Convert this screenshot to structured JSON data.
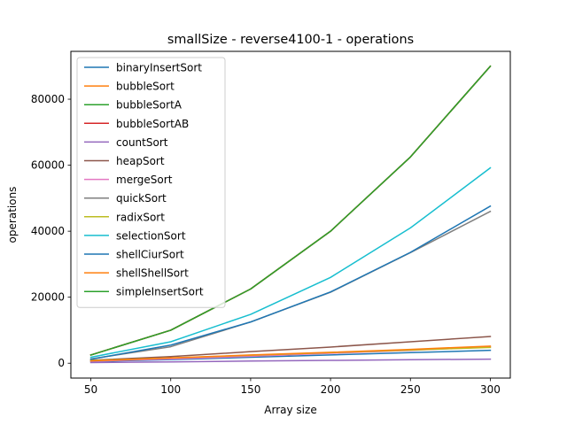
{
  "chart_data": {
    "type": "line",
    "title": "smallSize - reverse4100-1 - operations",
    "xlabel": "Array size",
    "ylabel": "operations",
    "x": [
      50,
      100,
      150,
      200,
      250,
      300
    ],
    "xlim": [
      37.5,
      312.5
    ],
    "ylim": [
      -4500,
      94500
    ],
    "xticks": [
      50,
      100,
      150,
      200,
      250,
      300
    ],
    "yticks": [
      0,
      20000,
      40000,
      60000,
      80000
    ],
    "grid": false,
    "legend_position": "upper-left",
    "series": [
      {
        "name": "binaryInsertSort",
        "color": "#1f77b4",
        "values": [
          500,
          1100,
          1800,
          2500,
          3200,
          3900
        ]
      },
      {
        "name": "bubbleSort",
        "color": "#ff7f0e",
        "values": [
          2500,
          10000,
          22500,
          40000,
          62500,
          90000
        ]
      },
      {
        "name": "bubbleSortA",
        "color": "#2ca02c",
        "values": [
          2500,
          10000,
          22500,
          40000,
          62500,
          90000
        ]
      },
      {
        "name": "bubbleSortAB",
        "color": "#d62728",
        "values": [
          2500,
          10000,
          22500,
          40000,
          62500,
          90000
        ]
      },
      {
        "name": "countSort",
        "color": "#9467bd",
        "values": [
          200,
          400,
          650,
          850,
          1050,
          1250
        ]
      },
      {
        "name": "heapSort",
        "color": "#8c564b",
        "values": [
          900,
          2000,
          3500,
          4900,
          6500,
          8100
        ]
      },
      {
        "name": "mergeSort",
        "color": "#e377c2",
        "values": [
          600,
          1300,
          2100,
          3000,
          3900,
          4900
        ]
      },
      {
        "name": "quickSort",
        "color": "#7f7f7f",
        "values": [
          1300,
          5000,
          12500,
          21500,
          33500,
          46000
        ]
      },
      {
        "name": "radixSort",
        "color": "#bcbd22",
        "values": [
          800,
          1600,
          2400,
          3200,
          4000,
          4800
        ]
      },
      {
        "name": "selectionSort",
        "color": "#17becf",
        "values": [
          1800,
          6500,
          14800,
          26000,
          41000,
          59200
        ]
      },
      {
        "name": "shellCiurSort",
        "color": "#1f77b4",
        "values": [
          1200,
          5500,
          12500,
          21600,
          33600,
          47600
        ]
      },
      {
        "name": "shellShellSort",
        "color": "#ff7f0e",
        "values": [
          700,
          1600,
          2500,
          3300,
          4200,
          5200
        ]
      },
      {
        "name": "simpleInsertSort",
        "color": "#2ca02c",
        "values": [
          2500,
          10000,
          22500,
          40000,
          62500,
          90000
        ]
      }
    ]
  }
}
